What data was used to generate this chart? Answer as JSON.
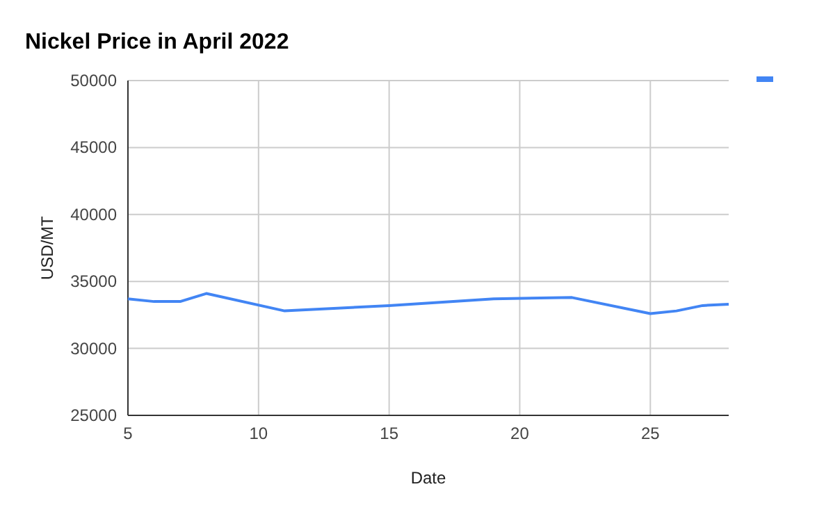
{
  "chart_data": {
    "type": "line",
    "title": "Nickel Price in April 2022",
    "xlabel": "Date",
    "ylabel": "USD/MT",
    "x": [
      5,
      6,
      7,
      8,
      11,
      15,
      19,
      22,
      25,
      26,
      27,
      28
    ],
    "series": [
      {
        "color": "#4285f4",
        "values": [
          33700,
          33500,
          33500,
          34100,
          32800,
          33200,
          33700,
          33800,
          32600,
          32800,
          33200,
          33300
        ]
      }
    ],
    "xlim": [
      5,
      28
    ],
    "xticks": [
      5,
      10,
      15,
      20,
      25
    ],
    "ylim": [
      25000,
      50000
    ],
    "yticks": [
      25000,
      30000,
      35000,
      40000,
      45000,
      50000
    ],
    "grid": true,
    "marker": "none",
    "line_style": "solid"
  }
}
